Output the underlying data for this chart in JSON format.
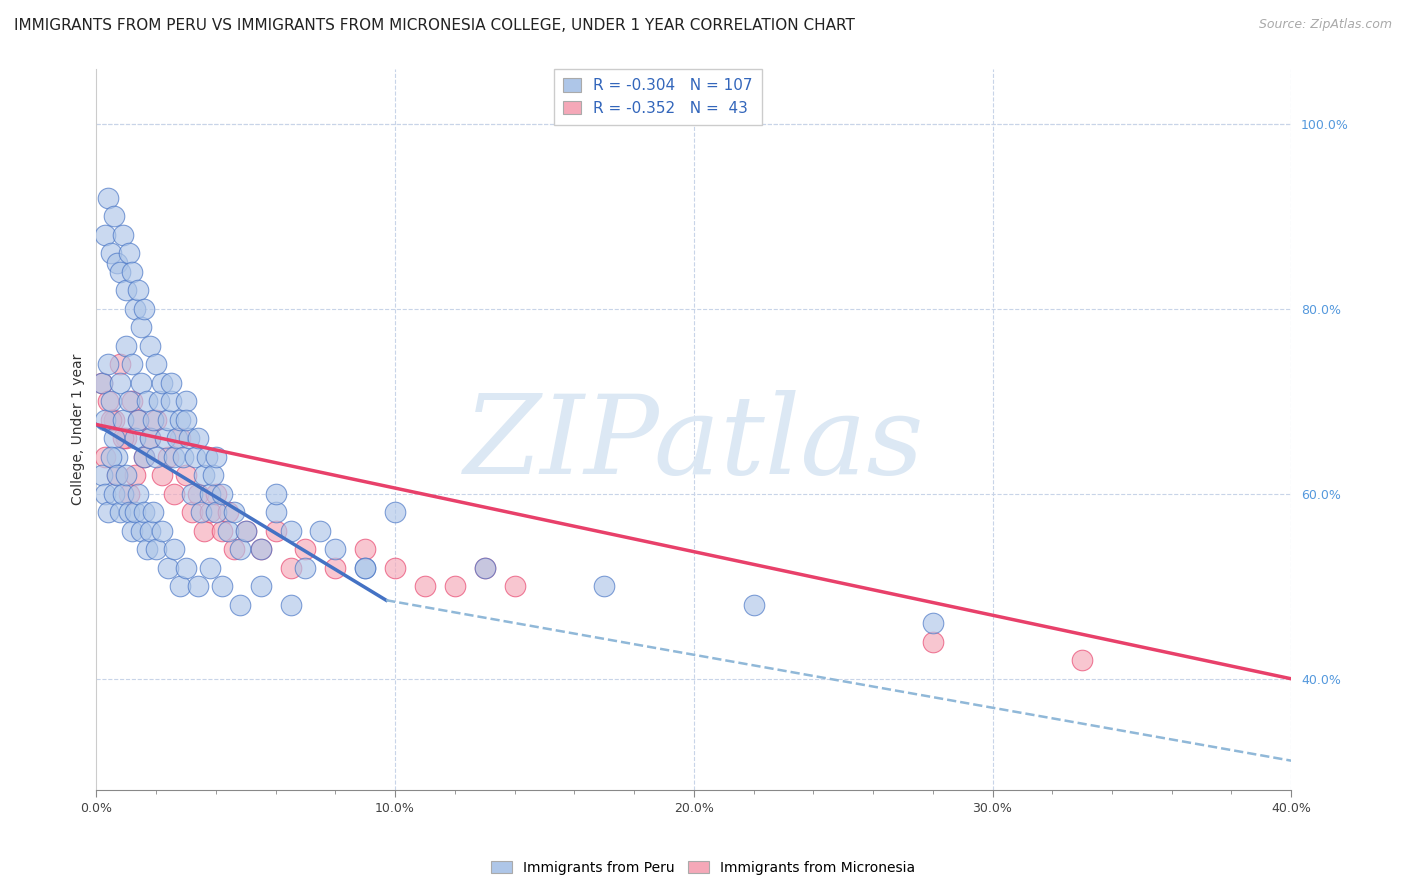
{
  "title": "IMMIGRANTS FROM PERU VS IMMIGRANTS FROM MICRONESIA COLLEGE, UNDER 1 YEAR CORRELATION CHART",
  "source_text": "Source: ZipAtlas.com",
  "ylabel": "College, Under 1 year",
  "xlim": [
    0.0,
    0.4
  ],
  "ylim": [
    0.28,
    1.06
  ],
  "xtick_labels": [
    "0.0%",
    "",
    "",
    "",
    "10.0%",
    "",
    "",
    "",
    "",
    "20.0%",
    "",
    "",
    "",
    "",
    "30.0%",
    "",
    "",
    "",
    "",
    "40.0%"
  ],
  "xtick_major_labels": [
    "0.0%",
    "10.0%",
    "20.0%",
    "30.0%",
    "40.0%"
  ],
  "xtick_major_vals": [
    0.0,
    0.1,
    0.2,
    0.3,
    0.4
  ],
  "ytick_labels_right": [
    "40.0%",
    "60.0%",
    "80.0%",
    "100.0%"
  ],
  "ytick_vals_right": [
    0.4,
    0.6,
    0.8,
    1.0
  ],
  "legend_peru_R": "-0.304",
  "legend_peru_N": "107",
  "legend_micronesia_R": "-0.352",
  "legend_micronesia_N": "43",
  "peru_color": "#aec6e8",
  "micronesia_color": "#f5a8b8",
  "peru_line_color": "#4472c4",
  "micronesia_line_color": "#e8406a",
  "dashed_line_color": "#90b8d8",
  "background_color": "#ffffff",
  "grid_color": "#c8d4e8",
  "watermark_color": "#dce8f4",
  "title_fontsize": 11,
  "peru_scatter_x": [
    0.002,
    0.003,
    0.004,
    0.005,
    0.006,
    0.007,
    0.008,
    0.009,
    0.01,
    0.011,
    0.012,
    0.013,
    0.014,
    0.015,
    0.016,
    0.017,
    0.018,
    0.019,
    0.02,
    0.021,
    0.022,
    0.023,
    0.024,
    0.025,
    0.026,
    0.027,
    0.028,
    0.029,
    0.03,
    0.031,
    0.032,
    0.033,
    0.034,
    0.035,
    0.036,
    0.037,
    0.038,
    0.039,
    0.04,
    0.042,
    0.044,
    0.046,
    0.048,
    0.05,
    0.055,
    0.06,
    0.065,
    0.07,
    0.08,
    0.09,
    0.002,
    0.003,
    0.004,
    0.005,
    0.006,
    0.007,
    0.008,
    0.009,
    0.01,
    0.011,
    0.012,
    0.013,
    0.014,
    0.015,
    0.016,
    0.017,
    0.018,
    0.019,
    0.02,
    0.022,
    0.024,
    0.026,
    0.028,
    0.03,
    0.034,
    0.038,
    0.042,
    0.048,
    0.055,
    0.065,
    0.003,
    0.004,
    0.005,
    0.006,
    0.007,
    0.008,
    0.009,
    0.01,
    0.011,
    0.012,
    0.013,
    0.014,
    0.015,
    0.016,
    0.018,
    0.02,
    0.025,
    0.03,
    0.04,
    0.06,
    0.075,
    0.09,
    0.1,
    0.13,
    0.17,
    0.22,
    0.28
  ],
  "peru_scatter_y": [
    0.72,
    0.68,
    0.74,
    0.7,
    0.66,
    0.64,
    0.72,
    0.68,
    0.76,
    0.7,
    0.74,
    0.66,
    0.68,
    0.72,
    0.64,
    0.7,
    0.66,
    0.68,
    0.64,
    0.7,
    0.72,
    0.66,
    0.68,
    0.7,
    0.64,
    0.66,
    0.68,
    0.64,
    0.7,
    0.66,
    0.6,
    0.64,
    0.66,
    0.58,
    0.62,
    0.64,
    0.6,
    0.62,
    0.58,
    0.6,
    0.56,
    0.58,
    0.54,
    0.56,
    0.54,
    0.58,
    0.56,
    0.52,
    0.54,
    0.52,
    0.62,
    0.6,
    0.58,
    0.64,
    0.6,
    0.62,
    0.58,
    0.6,
    0.62,
    0.58,
    0.56,
    0.58,
    0.6,
    0.56,
    0.58,
    0.54,
    0.56,
    0.58,
    0.54,
    0.56,
    0.52,
    0.54,
    0.5,
    0.52,
    0.5,
    0.52,
    0.5,
    0.48,
    0.5,
    0.48,
    0.88,
    0.92,
    0.86,
    0.9,
    0.85,
    0.84,
    0.88,
    0.82,
    0.86,
    0.84,
    0.8,
    0.82,
    0.78,
    0.8,
    0.76,
    0.74,
    0.72,
    0.68,
    0.64,
    0.6,
    0.56,
    0.52,
    0.58,
    0.52,
    0.5,
    0.48,
    0.46
  ],
  "micronesia_scatter_x": [
    0.002,
    0.004,
    0.006,
    0.008,
    0.01,
    0.012,
    0.014,
    0.016,
    0.018,
    0.02,
    0.022,
    0.024,
    0.026,
    0.028,
    0.03,
    0.032,
    0.034,
    0.036,
    0.038,
    0.04,
    0.042,
    0.044,
    0.046,
    0.05,
    0.055,
    0.06,
    0.065,
    0.07,
    0.08,
    0.09,
    0.1,
    0.11,
    0.12,
    0.13,
    0.14,
    0.28,
    0.33,
    0.003,
    0.005,
    0.007,
    0.009,
    0.011,
    0.013
  ],
  "micronesia_scatter_y": [
    0.72,
    0.7,
    0.68,
    0.74,
    0.66,
    0.7,
    0.68,
    0.64,
    0.66,
    0.68,
    0.62,
    0.64,
    0.6,
    0.66,
    0.62,
    0.58,
    0.6,
    0.56,
    0.58,
    0.6,
    0.56,
    0.58,
    0.54,
    0.56,
    0.54,
    0.56,
    0.52,
    0.54,
    0.52,
    0.54,
    0.52,
    0.5,
    0.5,
    0.52,
    0.5,
    0.44,
    0.42,
    0.64,
    0.68,
    0.62,
    0.66,
    0.6,
    0.62
  ],
  "peru_line_x": [
    0.0,
    0.097
  ],
  "peru_line_y": [
    0.675,
    0.485
  ],
  "dashed_line_x": [
    0.097,
    0.42
  ],
  "dashed_line_y": [
    0.485,
    0.3
  ],
  "micronesia_line_x": [
    0.0,
    0.4
  ],
  "micronesia_line_y": [
    0.675,
    0.4
  ]
}
